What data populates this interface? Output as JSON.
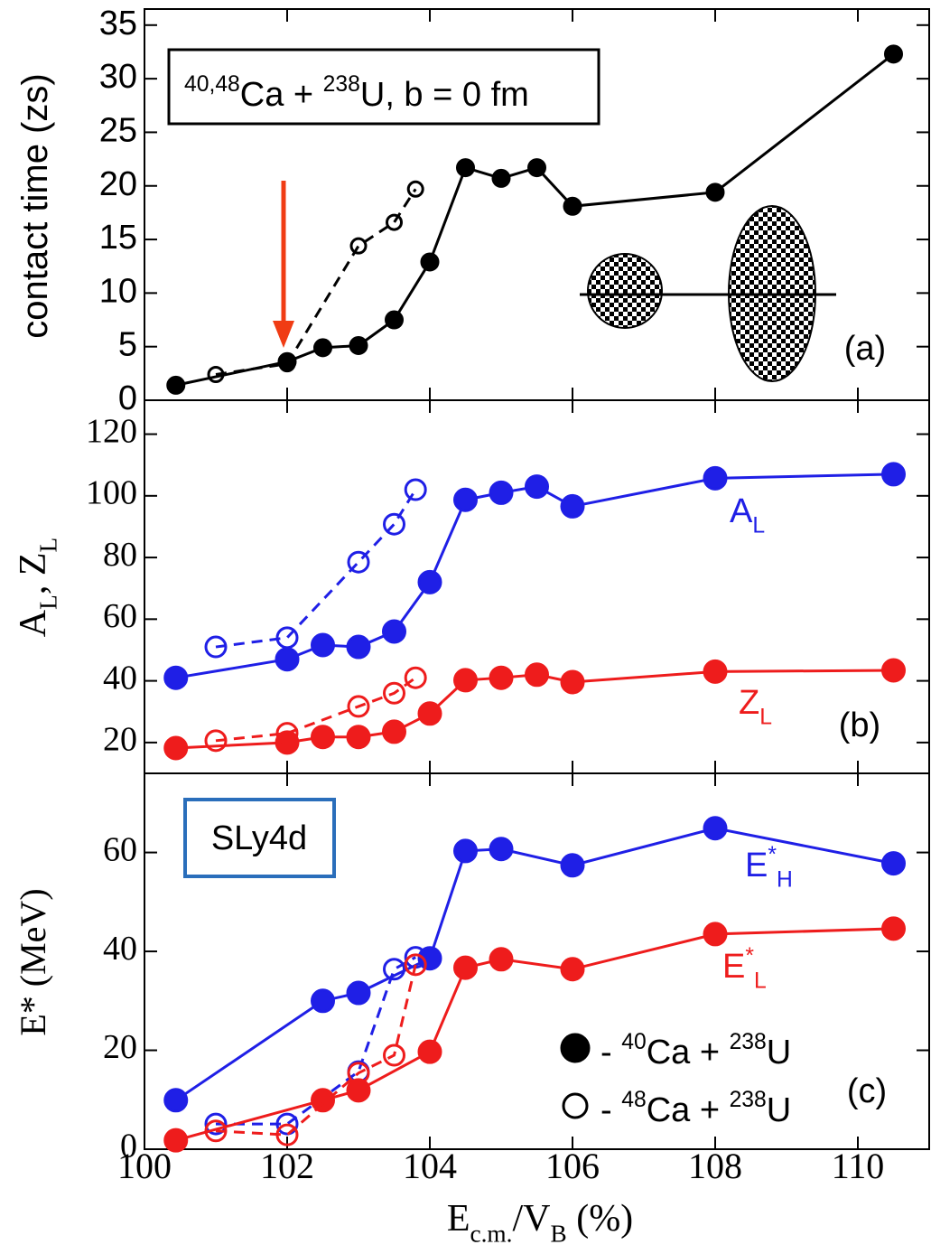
{
  "chart_data": [
    {
      "type": "line",
      "panel_label": "(a)",
      "ylabel": "contact time (zs)",
      "xlim": [
        100,
        111
      ],
      "ylim": [
        0,
        36.5
      ],
      "yticks": [
        0,
        5,
        10,
        15,
        20,
        25,
        30,
        35
      ],
      "box_text": [
        {
          "t": "40,48",
          "sup": true
        },
        {
          "t": "Ca + "
        },
        {
          "t": "238",
          "sup": true
        },
        {
          "t": "U, b = 0 fm"
        }
      ],
      "series": [
        {
          "color": "#000000",
          "marker": "filled",
          "dashed": false,
          "x": [
            100.44,
            102,
            102.5,
            103,
            103.5,
            104,
            104.5,
            105,
            105.5,
            106,
            108,
            110.5
          ],
          "values": [
            1.4,
            3.6,
            4.9,
            5.1,
            7.5,
            12.9,
            21.7,
            20.7,
            21.7,
            18.1,
            19.4,
            32.3
          ]
        },
        {
          "color": "#000000",
          "marker": "open",
          "dashed": true,
          "x": [
            101,
            102,
            103,
            103.5,
            103.8
          ],
          "values": [
            2.4,
            3.4,
            14.4,
            16.6,
            19.7
          ]
        }
      ]
    },
    {
      "type": "line",
      "panel_label": "(b)",
      "ylabel": [
        {
          "t": "A"
        },
        {
          "t": "L",
          "sub": true
        },
        {
          "t": ", Z"
        },
        {
          "t": "L",
          "sub": true
        }
      ],
      "xlim": [
        100,
        111
      ],
      "ylim": [
        10,
        131
      ],
      "yticks": [
        20,
        40,
        60,
        80,
        100,
        120
      ],
      "annotations": [
        {
          "color": "#1f1fe6",
          "parts": [
            {
              "t": "A"
            },
            {
              "t": "L",
              "sub": true
            }
          ]
        },
        {
          "color": "#ee1c1c",
          "parts": [
            {
              "t": "Z"
            },
            {
              "t": "L",
              "sub": true
            }
          ]
        }
      ],
      "series": [
        {
          "color": "#1f1fe6",
          "marker": "filled",
          "dashed": false,
          "x": [
            100.44,
            102,
            102.5,
            103,
            103.5,
            104,
            104.5,
            105,
            105.5,
            106,
            108,
            110.5
          ],
          "values": [
            41,
            47,
            51.6,
            51,
            56,
            72,
            98.7,
            101,
            103,
            96.6,
            105.7,
            107
          ]
        },
        {
          "color": "#1f1fe6",
          "marker": "open",
          "dashed": true,
          "x": [
            101,
            102,
            103,
            103.5,
            103.8
          ],
          "values": [
            51,
            54,
            78.5,
            90.8,
            102
          ]
        },
        {
          "color": "#ee1c1c",
          "marker": "filled",
          "dashed": false,
          "x": [
            100.44,
            102,
            102.5,
            103,
            103.5,
            104,
            104.5,
            105,
            105.5,
            106,
            108,
            110.5
          ],
          "values": [
            18.2,
            20,
            21.8,
            21.8,
            23.5,
            29.4,
            40.2,
            41,
            42,
            39.6,
            43,
            43.4
          ]
        },
        {
          "color": "#ee1c1c",
          "marker": "open",
          "dashed": true,
          "x": [
            101,
            102,
            103,
            103.5,
            103.8
          ],
          "values": [
            20.6,
            23,
            31.7,
            36,
            41
          ]
        }
      ]
    },
    {
      "type": "line",
      "panel_label": "(c)",
      "ylabel": "E* (MeV)",
      "xlabel": [
        {
          "t": "E"
        },
        {
          "t": "c.m.",
          "sub": true
        },
        {
          "t": "/V"
        },
        {
          "t": "B",
          "sub": true
        },
        {
          "t": " (%)"
        }
      ],
      "xlim": [
        100,
        111
      ],
      "xticks": [
        100,
        102,
        104,
        106,
        108,
        110
      ],
      "ylim": [
        0,
        76
      ],
      "yticks": [
        0,
        20,
        40,
        60
      ],
      "box_text": "SLy4d",
      "annotations": [
        {
          "color": "#1f1fe6",
          "parts": [
            {
              "t": "E"
            },
            {
              "t": "*",
              "sup": true
            },
            {
              "t": "H",
              "sub": true
            }
          ]
        },
        {
          "color": "#ee1c1c",
          "parts": [
            {
              "t": "E"
            },
            {
              "t": "*",
              "sup": true
            },
            {
              "t": "L",
              "sub": true
            }
          ]
        }
      ],
      "legend": [
        {
          "marker": "filled",
          "parts": [
            {
              "t": "- "
            },
            {
              "t": "40",
              "sup": true
            },
            {
              "t": "Ca + "
            },
            {
              "t": "238",
              "sup": true
            },
            {
              "t": "U"
            }
          ]
        },
        {
          "marker": "open",
          "parts": [
            {
              "t": "- "
            },
            {
              "t": "48",
              "sup": true
            },
            {
              "t": "Ca + "
            },
            {
              "t": "238",
              "sup": true
            },
            {
              "t": "U"
            }
          ]
        }
      ],
      "series": [
        {
          "color": "#1f1fe6",
          "marker": "filled",
          "dashed": false,
          "x": [
            100.44,
            102.5,
            103,
            104,
            104.5,
            105,
            106,
            108,
            110.5
          ],
          "values": [
            9.9,
            30,
            31.6,
            38.6,
            60.3,
            60.7,
            57.4,
            64.9,
            57.8
          ]
        },
        {
          "color": "#1f1fe6",
          "marker": "open",
          "dashed": true,
          "x": [
            101,
            102,
            103,
            103.5,
            103.8
          ],
          "values": [
            5.1,
            5.1,
            15.7,
            36.4,
            38.8
          ]
        },
        {
          "color": "#ee1c1c",
          "marker": "filled",
          "dashed": false,
          "x": [
            100.44,
            102.5,
            103,
            104,
            104.5,
            105,
            106,
            108,
            110.5
          ],
          "values": [
            1.8,
            9.9,
            11.9,
            19.7,
            36.7,
            38.4,
            36.4,
            43.5,
            44.6
          ]
        },
        {
          "color": "#ee1c1c",
          "marker": "open",
          "dashed": true,
          "x": [
            101,
            102,
            103,
            103.5,
            103.8
          ],
          "values": [
            3.7,
            2.9,
            15.4,
            19,
            37.3
          ]
        }
      ]
    }
  ]
}
